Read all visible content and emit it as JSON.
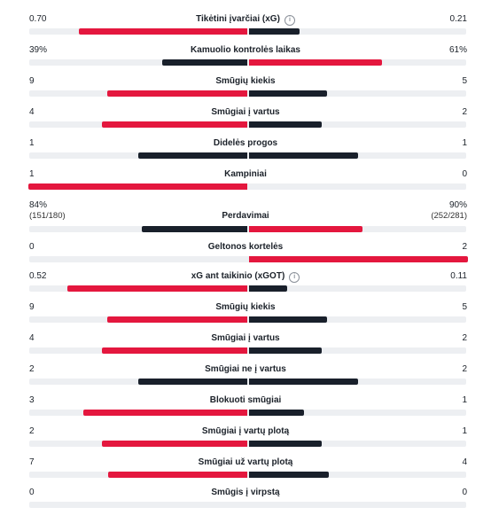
{
  "colors": {
    "home": "#e4173e",
    "away": "#19202b",
    "track": "#edeff2"
  },
  "stats": [
    {
      "label": "Tikėtini įvarčiai (xG)",
      "home": "0.70",
      "away": "0.21",
      "home_value": 0.7,
      "away_value": 0.21,
      "info": true,
      "leader": "home"
    },
    {
      "label": "Kamuolio kontrolės laikas",
      "home": "39%",
      "away": "61%",
      "home_value": 39,
      "away_value": 61,
      "leader": "away"
    },
    {
      "label": "Smūgių kiekis",
      "home": "9",
      "away": "5",
      "home_value": 9,
      "away_value": 5,
      "leader": "home"
    },
    {
      "label": "Smūgiai į vartus",
      "home": "4",
      "away": "2",
      "home_value": 4,
      "away_value": 2,
      "leader": "home"
    },
    {
      "label": "Didelės progos",
      "home": "1",
      "away": "1",
      "home_value": 1,
      "away_value": 1,
      "leader": "none"
    },
    {
      "label": "Kampiniai",
      "home": "1",
      "away": "0",
      "home_value": 1,
      "away_value": 0,
      "leader": "home"
    },
    {
      "label": "Perdavimai",
      "home": "84%",
      "away": "90%",
      "home_sub": "(151/180)",
      "away_sub": "(252/281)",
      "home_value": 84,
      "away_value": 90,
      "leader": "away"
    },
    {
      "label": "Geltonos kortelės",
      "home": "0",
      "away": "2",
      "home_value": 0,
      "away_value": 2,
      "leader": "away"
    },
    {
      "label": "xG ant taikinio (xGOT)",
      "home": "0.52",
      "away": "0.11",
      "home_value": 0.52,
      "away_value": 0.11,
      "info": true,
      "leader": "home"
    },
    {
      "label": "Smūgių kiekis",
      "home": "9",
      "away": "5",
      "home_value": 9,
      "away_value": 5,
      "leader": "home"
    },
    {
      "label": "Smūgiai į vartus",
      "home": "4",
      "away": "2",
      "home_value": 4,
      "away_value": 2,
      "leader": "home"
    },
    {
      "label": "Smūgiai ne į vartus",
      "home": "2",
      "away": "2",
      "home_value": 2,
      "away_value": 2,
      "leader": "none"
    },
    {
      "label": "Blokuoti smūgiai",
      "home": "3",
      "away": "1",
      "home_value": 3,
      "away_value": 1,
      "leader": "home"
    },
    {
      "label": "Smūgiai į vartų plotą",
      "home": "2",
      "away": "1",
      "home_value": 2,
      "away_value": 1,
      "leader": "home"
    },
    {
      "label": "Smūgiai už vartų plotą",
      "home": "7",
      "away": "4",
      "home_value": 7,
      "away_value": 4,
      "leader": "home"
    },
    {
      "label": "Smūgis į virpstą",
      "home": "0",
      "away": "0",
      "home_value": 0,
      "away_value": 0,
      "leader": "none"
    }
  ]
}
